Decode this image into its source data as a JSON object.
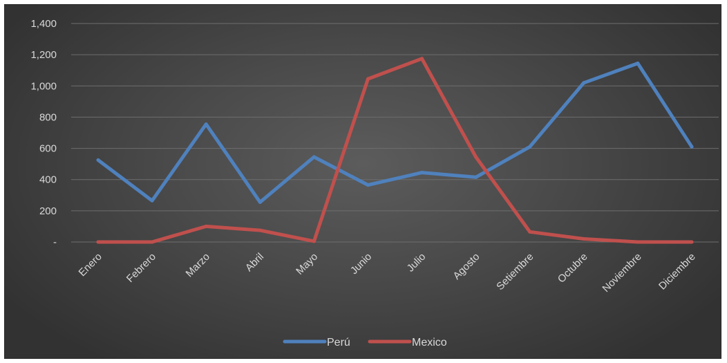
{
  "chart_data": {
    "type": "line",
    "title": "",
    "xlabel": "",
    "ylabel": "",
    "ylim": [
      0,
      1400
    ],
    "yticks": [
      0,
      200,
      400,
      600,
      800,
      1000,
      1200,
      1400
    ],
    "ytick_labels": [
      "-",
      "200",
      "400",
      "600",
      "800",
      "1,000",
      "1,200",
      "1,400"
    ],
    "categories": [
      "Enero",
      "Febrero",
      "Marzo",
      "Abril",
      "Mayo",
      "Junio",
      "Julio",
      "Agosto",
      "Setiembre",
      "Octubre",
      "Noviembre",
      "Diciembre"
    ],
    "grid": true,
    "legend_position": "bottom",
    "series": [
      {
        "name": "Perú",
        "color": "#4f81bd",
        "values": [
          525,
          265,
          755,
          255,
          545,
          365,
          445,
          415,
          610,
          1020,
          1145,
          610
        ]
      },
      {
        "name": "Mexico",
        "color": "#c0504d",
        "values": [
          0,
          0,
          100,
          75,
          5,
          1045,
          1175,
          545,
          65,
          20,
          0,
          0
        ]
      }
    ]
  }
}
